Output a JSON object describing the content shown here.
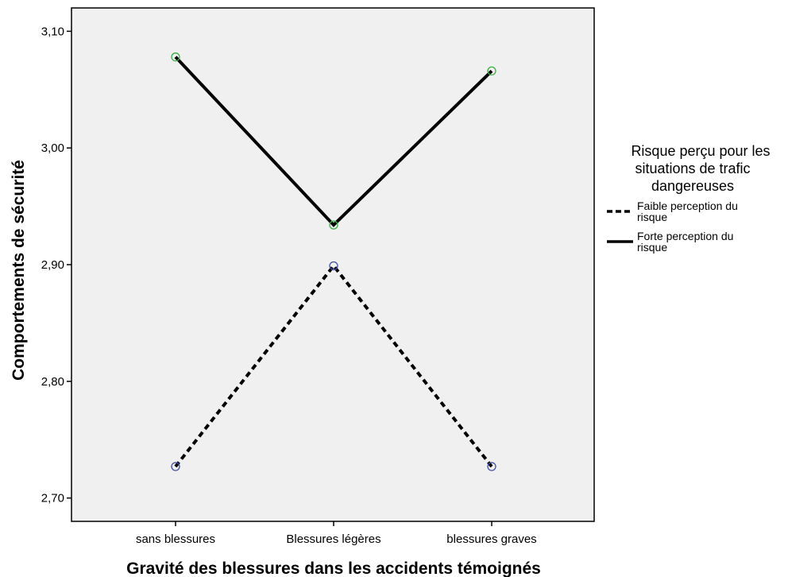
{
  "chart_data": {
    "type": "line",
    "categories": [
      "sans blessures",
      "Blessures légères",
      "blessures graves"
    ],
    "xlabel": "Gravité des blessures dans les accidents témoignés",
    "ylabel": "Comportements de sécurité",
    "ylim": [
      2.68,
      3.12
    ],
    "yticks": [
      2.7,
      2.8,
      2.9,
      3.0,
      3.1
    ],
    "ytick_labels": [
      "2,70",
      "2,80",
      "2,90",
      "3,00",
      "3,10"
    ],
    "grid": false,
    "plot_background": "#f0f0f0",
    "legend": {
      "title_lines": [
        "Risque perçu pour les",
        "situations de trafic",
        "dangereuses"
      ],
      "placement": "right"
    },
    "series": [
      {
        "name_lines": [
          "Faible perception du",
          "risque"
        ],
        "values": [
          2.727,
          2.899,
          2.727
        ],
        "line_style": "dashed",
        "color": "#000000",
        "marker_color": "#3f4fa8"
      },
      {
        "name_lines": [
          "Forte perception du",
          "risque"
        ],
        "values": [
          3.078,
          2.934,
          3.066
        ],
        "line_style": "solid",
        "color": "#000000",
        "marker_color": "#3cb043"
      }
    ]
  }
}
